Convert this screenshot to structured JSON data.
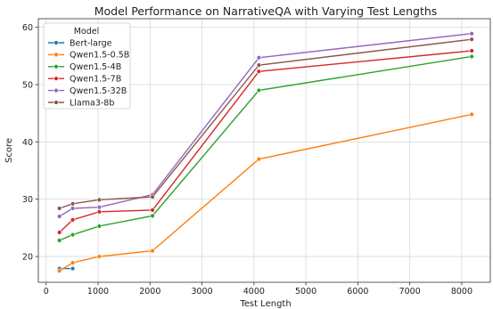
{
  "chart_data": {
    "type": "line",
    "title": "Model Performance on NarrativeQA with Varying Test Lengths",
    "xlabel": "Test Length",
    "ylabel": "Score",
    "xlim": [
      -150,
      8550
    ],
    "ylim": [
      15.5,
      61.5
    ],
    "xticks": [
      0,
      1000,
      2000,
      3000,
      4000,
      5000,
      6000,
      7000,
      8000
    ],
    "yticks": [
      20,
      30,
      40,
      50,
      60
    ],
    "grid": true,
    "legend_title": "Model",
    "legend_position": "upper left",
    "series": [
      {
        "name": "Bert-large",
        "color": "#1f77b4",
        "x": [
          256,
          512
        ],
        "values": [
          17.9,
          17.9
        ]
      },
      {
        "name": "Qwen1.5-0.5B",
        "color": "#ff7f0e",
        "x": [
          256,
          512,
          1024,
          2048,
          4096,
          8192
        ],
        "values": [
          17.5,
          18.9,
          20.0,
          21.0,
          37.0,
          44.8
        ]
      },
      {
        "name": "Qwen1.5-4B",
        "color": "#2ca02c",
        "x": [
          256,
          512,
          1024,
          2048,
          4096,
          8192
        ],
        "values": [
          22.8,
          23.8,
          25.3,
          27.1,
          49.0,
          54.9
        ]
      },
      {
        "name": "Qwen1.5-7B",
        "color": "#d62728",
        "x": [
          256,
          512,
          1024,
          2048,
          4096,
          8192
        ],
        "values": [
          24.2,
          26.4,
          27.8,
          28.1,
          52.3,
          55.9
        ]
      },
      {
        "name": "Qwen1.5-32B",
        "color": "#9467bd",
        "x": [
          256,
          512,
          1024,
          2048,
          4096,
          8192
        ],
        "values": [
          27.0,
          28.4,
          28.6,
          30.8,
          54.7,
          58.9
        ]
      },
      {
        "name": "Llama3-8b",
        "color": "#8c564b",
        "x": [
          256,
          512,
          1024,
          2048,
          4096,
          8192
        ],
        "values": [
          28.4,
          29.2,
          29.9,
          30.4,
          53.4,
          57.9
        ]
      }
    ]
  }
}
